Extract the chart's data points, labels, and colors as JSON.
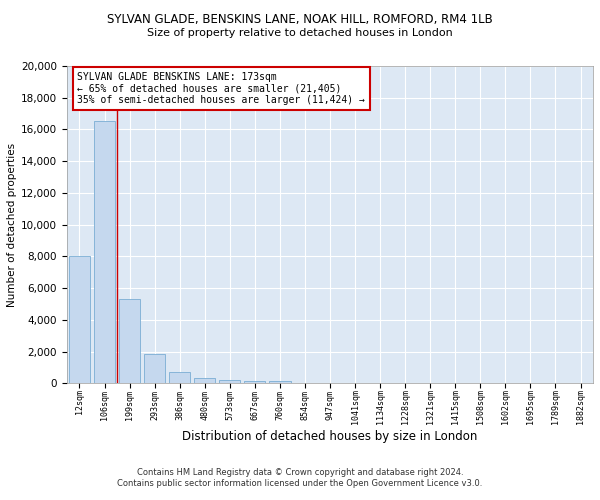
{
  "title": "SYLVAN GLADE, BENSKINS LANE, NOAK HILL, ROMFORD, RM4 1LB",
  "subtitle": "Size of property relative to detached houses in London",
  "xlabel": "Distribution of detached houses by size in London",
  "ylabel": "Number of detached properties",
  "bar_color": "#c5d8ee",
  "bar_edge_color": "#7aadd4",
  "background_color": "#dde8f4",
  "grid_color": "#ffffff",
  "vline_x": 1.5,
  "vline_color": "#cc0000",
  "annotation_text": "SYLVAN GLADE BENSKINS LANE: 173sqm\n← 65% of detached houses are smaller (21,405)\n35% of semi-detached houses are larger (11,424) →",
  "annotation_box_color": "#ffffff",
  "annotation_box_edge": "#cc0000",
  "footer": "Contains HM Land Registry data © Crown copyright and database right 2024.\nContains public sector information licensed under the Open Government Licence v3.0.",
  "categories": [
    "12sqm",
    "106sqm",
    "199sqm",
    "293sqm",
    "386sqm",
    "480sqm",
    "573sqm",
    "667sqm",
    "760sqm",
    "854sqm",
    "947sqm",
    "1041sqm",
    "1134sqm",
    "1228sqm",
    "1321sqm",
    "1415sqm",
    "1508sqm",
    "1602sqm",
    "1695sqm",
    "1789sqm",
    "1882sqm"
  ],
  "values": [
    8050,
    16550,
    5300,
    1850,
    700,
    330,
    190,
    170,
    130,
    0,
    0,
    0,
    0,
    0,
    0,
    0,
    0,
    0,
    0,
    0,
    0
  ],
  "ylim": [
    0,
    20000
  ],
  "yticks": [
    0,
    2000,
    4000,
    6000,
    8000,
    10000,
    12000,
    14000,
    16000,
    18000,
    20000
  ]
}
